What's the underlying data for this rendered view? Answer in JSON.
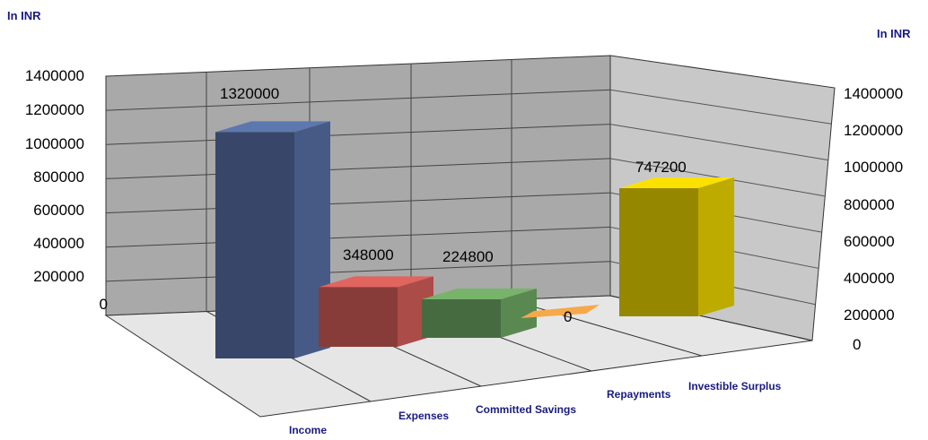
{
  "chart_data": {
    "type": "bar",
    "variant": "3d-column",
    "categories": [
      "Income",
      "Expenses",
      "Committed Savings",
      "Repayments",
      "Investible Surplus"
    ],
    "values": [
      1320000,
      348000,
      224800,
      0,
      747200
    ],
    "data_labels": [
      "1320000",
      "348000",
      "224800",
      "0",
      "747200"
    ],
    "colors": [
      "#4a5f8c",
      "#b5504c",
      "#5f8f55",
      "#f5a94a",
      "#c8b400"
    ],
    "left_axis_label": "In INR",
    "right_axis_label": "In INR",
    "ylim": [
      0,
      1400000
    ],
    "left_ticks": [
      "1400000",
      "1200000",
      "1000000",
      "800000",
      "600000",
      "400000",
      "200000",
      "0"
    ],
    "right_ticks": [
      "1400000",
      "1200000",
      "1000000",
      "800000",
      "600000",
      "400000",
      "200000",
      "0"
    ],
    "grid": true,
    "legend": "none"
  }
}
